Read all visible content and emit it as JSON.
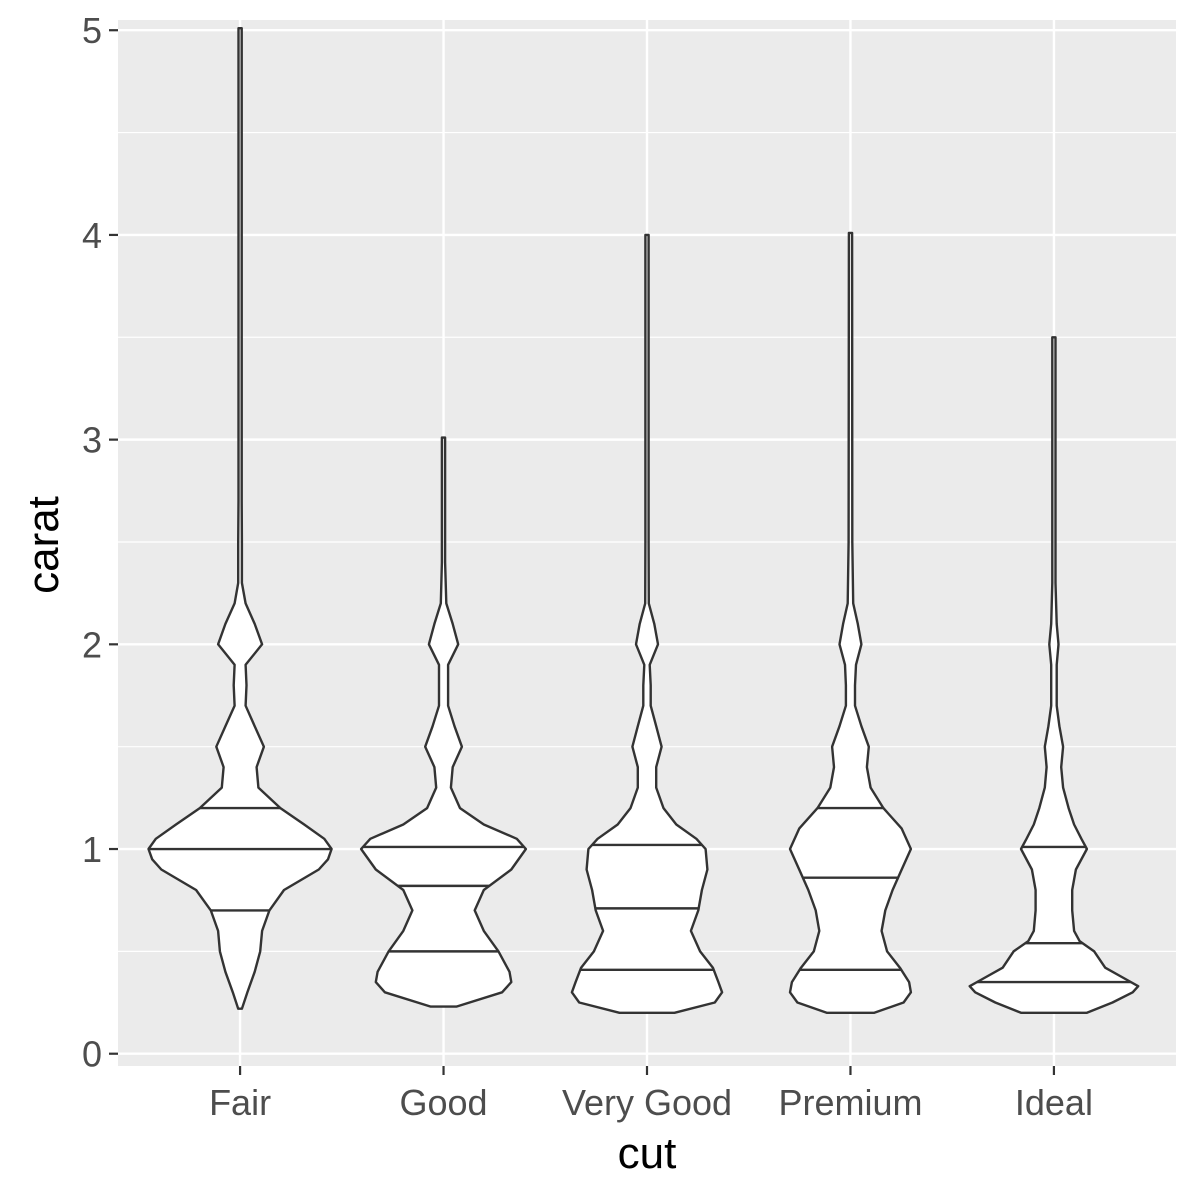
{
  "chart_data": {
    "type": "violin",
    "xlabel": "cut",
    "ylabel": "carat",
    "categories": [
      "Fair",
      "Good",
      "Very Good",
      "Premium",
      "Ideal"
    ],
    "ylim": [
      -0.06,
      5.05
    ],
    "yticks": [
      0,
      1,
      2,
      3,
      4,
      5
    ],
    "y_minor_ticks": [
      0.5,
      1.5,
      2.5,
      3.5,
      4.5
    ],
    "grid": true,
    "legend": "none",
    "quantiles_drawn": [
      0.25,
      0.5,
      0.75
    ],
    "violins": [
      {
        "category": "Fair",
        "min": 0.22,
        "max": 5.01,
        "quantiles": [
          0.7,
          1.0,
          1.2
        ],
        "density_profile": [
          [
            0.22,
            0.02
          ],
          [
            0.3,
            0.08
          ],
          [
            0.4,
            0.16
          ],
          [
            0.5,
            0.22
          ],
          [
            0.6,
            0.24
          ],
          [
            0.7,
            0.32
          ],
          [
            0.8,
            0.48
          ],
          [
            0.9,
            0.86
          ],
          [
            0.95,
            0.96
          ],
          [
            1.0,
            1.0
          ],
          [
            1.05,
            0.92
          ],
          [
            1.12,
            0.7
          ],
          [
            1.2,
            0.44
          ],
          [
            1.3,
            0.2
          ],
          [
            1.4,
            0.18
          ],
          [
            1.5,
            0.26
          ],
          [
            1.6,
            0.16
          ],
          [
            1.7,
            0.06
          ],
          [
            1.8,
            0.07
          ],
          [
            1.9,
            0.06
          ],
          [
            2.0,
            0.24
          ],
          [
            2.1,
            0.16
          ],
          [
            2.2,
            0.06
          ],
          [
            2.3,
            0.02
          ],
          [
            2.5,
            0.02
          ],
          [
            2.7,
            0.01
          ],
          [
            3.0,
            0.01
          ],
          [
            5.01,
            0.01
          ]
        ]
      },
      {
        "category": "Good",
        "min": 0.23,
        "max": 3.01,
        "quantiles": [
          0.5,
          0.82,
          1.01
        ],
        "density_profile": [
          [
            0.23,
            0.14
          ],
          [
            0.3,
            0.64
          ],
          [
            0.35,
            0.74
          ],
          [
            0.4,
            0.72
          ],
          [
            0.5,
            0.6
          ],
          [
            0.6,
            0.44
          ],
          [
            0.7,
            0.34
          ],
          [
            0.8,
            0.44
          ],
          [
            0.9,
            0.74
          ],
          [
            1.0,
            0.9
          ],
          [
            1.05,
            0.8
          ],
          [
            1.12,
            0.44
          ],
          [
            1.2,
            0.18
          ],
          [
            1.3,
            0.08
          ],
          [
            1.4,
            0.1
          ],
          [
            1.5,
            0.2
          ],
          [
            1.6,
            0.12
          ],
          [
            1.7,
            0.05
          ],
          [
            1.8,
            0.05
          ],
          [
            1.9,
            0.05
          ],
          [
            2.0,
            0.16
          ],
          [
            2.1,
            0.1
          ],
          [
            2.2,
            0.03
          ],
          [
            2.4,
            0.01
          ],
          [
            3.01,
            0.01
          ]
        ]
      },
      {
        "category": "Very Good",
        "min": 0.2,
        "max": 4.0,
        "quantiles": [
          0.41,
          0.71,
          1.02
        ],
        "density_profile": [
          [
            0.2,
            0.3
          ],
          [
            0.25,
            0.74
          ],
          [
            0.3,
            0.82
          ],
          [
            0.35,
            0.78
          ],
          [
            0.42,
            0.72
          ],
          [
            0.5,
            0.58
          ],
          [
            0.6,
            0.48
          ],
          [
            0.7,
            0.56
          ],
          [
            0.8,
            0.6
          ],
          [
            0.9,
            0.66
          ],
          [
            1.0,
            0.64
          ],
          [
            1.05,
            0.54
          ],
          [
            1.12,
            0.32
          ],
          [
            1.2,
            0.18
          ],
          [
            1.3,
            0.1
          ],
          [
            1.4,
            0.1
          ],
          [
            1.5,
            0.16
          ],
          [
            1.6,
            0.1
          ],
          [
            1.7,
            0.04
          ],
          [
            1.8,
            0.04
          ],
          [
            1.9,
            0.03
          ],
          [
            2.0,
            0.12
          ],
          [
            2.1,
            0.08
          ],
          [
            2.2,
            0.02
          ],
          [
            2.5,
            0.01
          ],
          [
            4.0,
            0.01
          ]
        ]
      },
      {
        "category": "Premium",
        "min": 0.2,
        "max": 4.01,
        "quantiles": [
          0.41,
          0.86,
          1.2
        ],
        "density_profile": [
          [
            0.2,
            0.26
          ],
          [
            0.25,
            0.58
          ],
          [
            0.3,
            0.66
          ],
          [
            0.35,
            0.64
          ],
          [
            0.42,
            0.54
          ],
          [
            0.5,
            0.4
          ],
          [
            0.6,
            0.34
          ],
          [
            0.7,
            0.38
          ],
          [
            0.8,
            0.46
          ],
          [
            0.9,
            0.56
          ],
          [
            1.0,
            0.66
          ],
          [
            1.1,
            0.56
          ],
          [
            1.2,
            0.36
          ],
          [
            1.3,
            0.22
          ],
          [
            1.4,
            0.18
          ],
          [
            1.5,
            0.2
          ],
          [
            1.6,
            0.12
          ],
          [
            1.7,
            0.05
          ],
          [
            1.8,
            0.05
          ],
          [
            1.9,
            0.06
          ],
          [
            2.0,
            0.12
          ],
          [
            2.1,
            0.08
          ],
          [
            2.2,
            0.03
          ],
          [
            2.5,
            0.02
          ],
          [
            4.01,
            0.01
          ]
        ]
      },
      {
        "category": "Ideal",
        "min": 0.2,
        "max": 3.5,
        "quantiles": [
          0.35,
          0.54,
          1.01
        ],
        "density_profile": [
          [
            0.2,
            0.36
          ],
          [
            0.25,
            0.64
          ],
          [
            0.3,
            0.86
          ],
          [
            0.33,
            0.92
          ],
          [
            0.36,
            0.8
          ],
          [
            0.42,
            0.56
          ],
          [
            0.5,
            0.44
          ],
          [
            0.55,
            0.28
          ],
          [
            0.6,
            0.22
          ],
          [
            0.7,
            0.2
          ],
          [
            0.8,
            0.2
          ],
          [
            0.9,
            0.24
          ],
          [
            1.0,
            0.36
          ],
          [
            1.05,
            0.3
          ],
          [
            1.12,
            0.22
          ],
          [
            1.2,
            0.16
          ],
          [
            1.3,
            0.1
          ],
          [
            1.4,
            0.08
          ],
          [
            1.5,
            0.1
          ],
          [
            1.6,
            0.06
          ],
          [
            1.7,
            0.03
          ],
          [
            1.8,
            0.03
          ],
          [
            1.9,
            0.03
          ],
          [
            2.0,
            0.05
          ],
          [
            2.1,
            0.03
          ],
          [
            2.3,
            0.01
          ],
          [
            3.5,
            0.01
          ]
        ]
      }
    ]
  }
}
